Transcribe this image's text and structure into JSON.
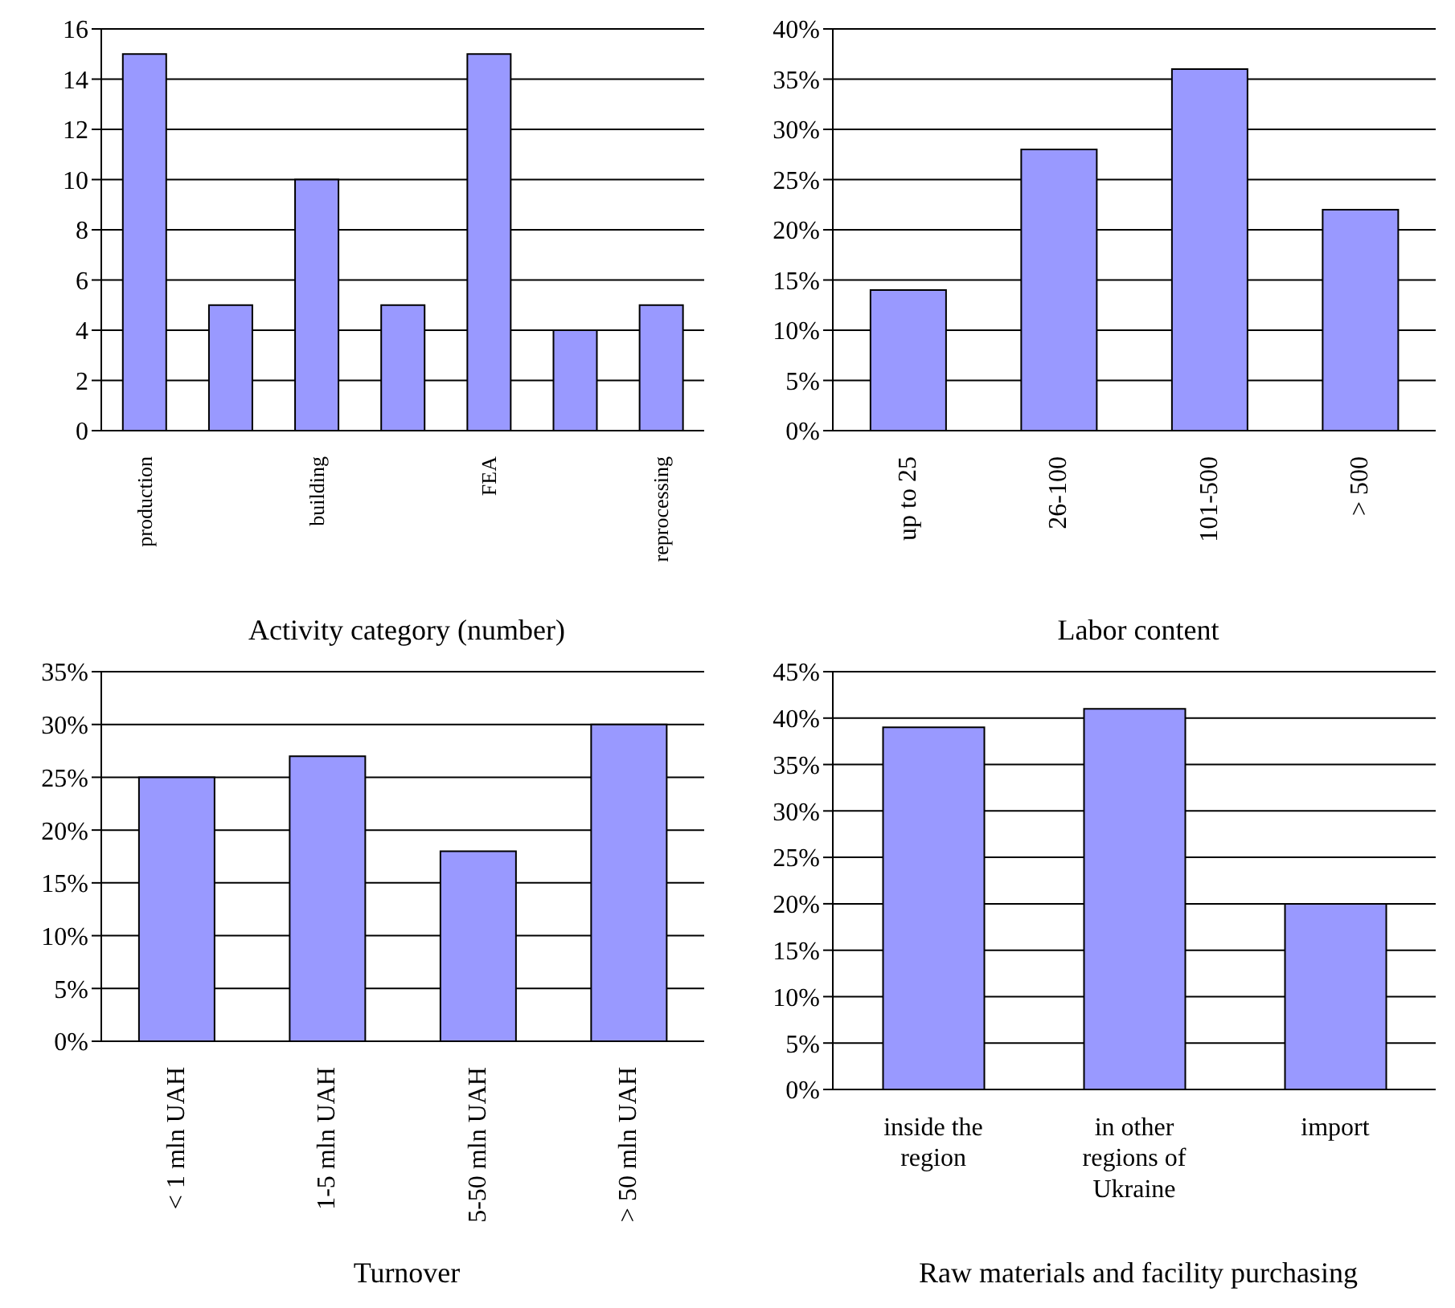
{
  "chart_data": [
    {
      "type": "bar",
      "xlabel": "Activity category (number)",
      "categories": [
        "production",
        null,
        "building",
        null,
        "FEA",
        null,
        "reprocessing"
      ],
      "values": [
        15,
        5,
        10,
        5,
        15,
        4,
        5
      ],
      "color": "#9999ff",
      "ylim": [
        0,
        16
      ],
      "yticks": [
        0,
        2,
        4,
        6,
        8,
        10,
        12,
        14,
        16
      ],
      "grid": "y"
    },
    {
      "type": "bar",
      "xlabel": "Labor content",
      "categories": [
        "up to 25",
        "26-100",
        "101-500",
        "> 500"
      ],
      "values": [
        14,
        28,
        36,
        22
      ],
      "color": "#9999ff",
      "ylim": [
        0,
        40
      ],
      "yticks": [
        {
          "value": 0,
          "label": "0%"
        },
        {
          "value": 5,
          "label": "5%"
        },
        {
          "value": 10,
          "label": "10%"
        },
        {
          "value": 15,
          "label": "15%"
        },
        {
          "value": 20,
          "label": "20%"
        },
        {
          "value": 25,
          "label": "25%"
        },
        {
          "value": 30,
          "label": "30%"
        },
        {
          "value": 35,
          "label": "35%"
        },
        {
          "value": 40,
          "label": "40%"
        }
      ],
      "grid": "y"
    },
    {
      "type": "bar",
      "xlabel": "Turnover",
      "categories": [
        "< 1 mln UAH",
        "1-5 mln UAH",
        "5-50 mln UAH",
        "> 50 mln UAH"
      ],
      "values": [
        25,
        27,
        18,
        30
      ],
      "color": "#9999ff",
      "ylim": [
        0,
        35
      ],
      "yticks": [
        {
          "value": 0,
          "label": "0%"
        },
        {
          "value": 5,
          "label": "5%"
        },
        {
          "value": 10,
          "label": "10%"
        },
        {
          "value": 15,
          "label": "15%"
        },
        {
          "value": 20,
          "label": "20%"
        },
        {
          "value": 25,
          "label": "25%"
        },
        {
          "value": 30,
          "label": "30%"
        },
        {
          "value": 35,
          "label": "35%"
        }
      ],
      "grid": "y"
    },
    {
      "type": "bar",
      "xlabel": "Raw materials and facility purchasing",
      "categories": [
        "inside the region",
        "in other regions of Ukraine",
        "import"
      ],
      "values": [
        39,
        41,
        20
      ],
      "color": "#9999ff",
      "ylim": [
        0,
        45
      ],
      "yticks": [
        {
          "value": 0,
          "label": "0%"
        },
        {
          "value": 5,
          "label": "5%"
        },
        {
          "value": 10,
          "label": "10%"
        },
        {
          "value": 15,
          "label": "15%"
        },
        {
          "value": 20,
          "label": "20%"
        },
        {
          "value": 25,
          "label": "25%"
        },
        {
          "value": 30,
          "label": "30%"
        },
        {
          "value": 35,
          "label": "35%"
        },
        {
          "value": 40,
          "label": "40%"
        },
        {
          "value": 45,
          "label": "45%"
        }
      ],
      "grid": "y"
    }
  ]
}
